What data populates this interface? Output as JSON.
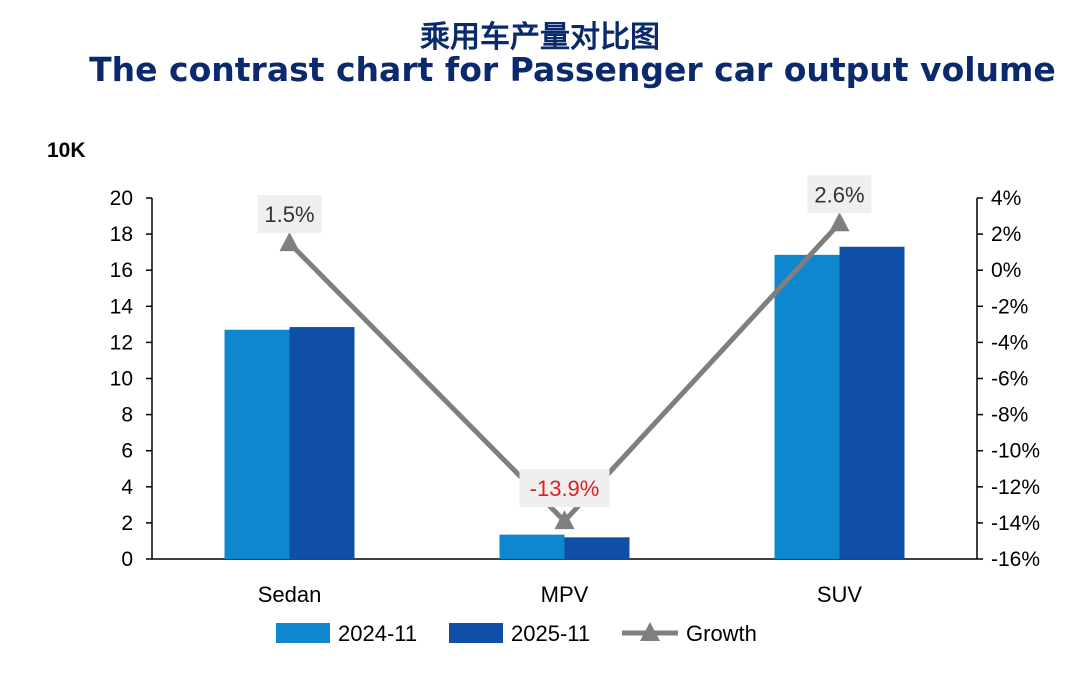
{
  "title_cn": "乘用车产量对比图",
  "title_en": "The contrast chart for Passenger car output volume",
  "colors": {
    "title": "#0b2a6e",
    "series_2024": "#0e87cf",
    "series_2025": "#0f4fa8",
    "growth": "#7f7f7f",
    "negative_label": "#e02020",
    "label_bg": "#efefef"
  },
  "chart_data": {
    "type": "bar",
    "title": "The contrast chart for Passenger car output volume",
    "ylabel": "10K",
    "categories": [
      "Sedan",
      "MPV",
      "SUV"
    ],
    "ylim": [
      0,
      20
    ],
    "y_ticks": [
      "0",
      "2",
      "4",
      "6",
      "8",
      "10",
      "12",
      "14",
      "16",
      "18",
      "20"
    ],
    "y2lim": [
      -16,
      4
    ],
    "y2_ticks": [
      "-16%",
      "-14%",
      "-12%",
      "-10%",
      "-8%",
      "-6%",
      "-4%",
      "-2%",
      "0%",
      "2%",
      "4%"
    ],
    "series": [
      {
        "name": "2024-11",
        "type": "bar",
        "values": [
          12.7,
          1.35,
          16.85
        ]
      },
      {
        "name": "2025-11",
        "type": "bar",
        "values": [
          12.85,
          1.2,
          17.3
        ]
      },
      {
        "name": "Growth",
        "type": "line",
        "axis": "right",
        "values": [
          1.5,
          -13.9,
          2.6
        ],
        "labels": [
          "1.5%",
          "-13.9%",
          "2.6%"
        ]
      }
    ],
    "legend": [
      "2024-11",
      "2025-11",
      "Growth"
    ],
    "legend_position": "bottom"
  }
}
